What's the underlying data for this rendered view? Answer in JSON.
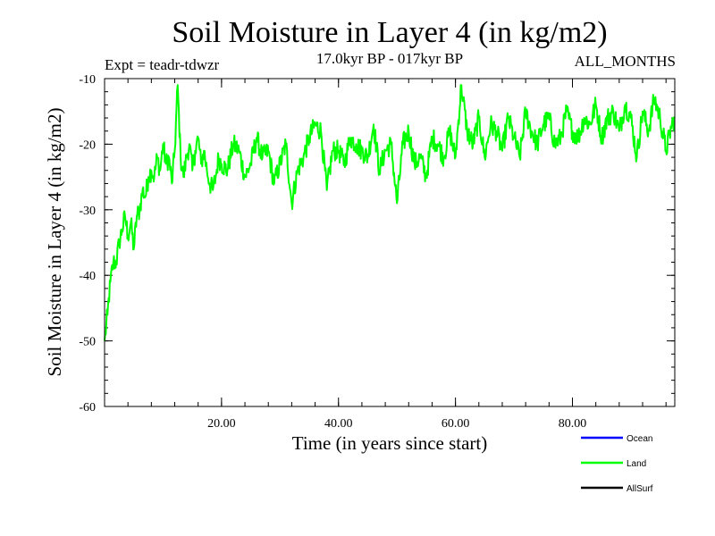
{
  "chart_data": {
    "type": "line",
    "title": "Soil Moisture in Layer 4 (in kg/m2)",
    "subtitle_left": "Expt = teadr-tdwzr",
    "subtitle_center": "17.0kyr BP - 017kyr BP",
    "subtitle_right": "ALL_MONTHS",
    "xlabel": "Time (in years since start)",
    "ylabel": "Soil Moisture in Layer 4 (in kg/m2)",
    "xlim": [
      0,
      97.5
    ],
    "ylim": [
      -60,
      -10
    ],
    "x_ticks": [
      20,
      40,
      60,
      80
    ],
    "x_tick_labels": [
      "20.00",
      "40.00",
      "60.00",
      "80.00"
    ],
    "y_ticks": [
      -60,
      -50,
      -40,
      -30,
      -20,
      -10
    ],
    "y_tick_labels": [
      "-60",
      "-50",
      "-40",
      "-30",
      "-20",
      "-10"
    ],
    "legend": [
      {
        "name": "Ocean",
        "color": "#0000ff"
      },
      {
        "name": "Land",
        "color": "#00ff00"
      },
      {
        "name": "AllSurf",
        "color": "#000000"
      }
    ],
    "series": [
      {
        "name": "Land",
        "color": "#00ff00",
        "x": [
          0,
          0.5,
          1,
          1.5,
          2,
          2.5,
          3,
          3.5,
          4,
          4.5,
          5,
          5.5,
          6,
          6.5,
          7,
          7.5,
          8,
          8.5,
          9,
          9.5,
          10,
          10.5,
          11,
          11.5,
          12,
          12.5,
          13,
          13.5,
          14,
          14.5,
          15,
          15.5,
          16,
          16.5,
          17,
          17.5,
          18,
          18.5,
          19,
          19.5,
          20,
          21,
          22,
          23,
          24,
          25,
          26,
          27,
          28,
          29,
          30,
          31,
          32,
          33,
          34,
          35,
          36,
          37,
          38,
          39,
          40,
          41,
          42,
          43,
          44,
          45,
          46,
          47,
          48,
          49,
          50,
          51,
          52,
          53,
          54,
          55,
          56,
          57,
          58,
          59,
          60,
          61,
          62,
          63,
          64,
          65,
          66,
          67,
          68,
          69,
          70,
          71,
          72,
          73,
          74,
          75,
          76,
          77,
          78,
          79,
          80,
          81,
          82,
          83,
          84,
          85,
          86,
          87,
          88,
          89,
          90,
          91,
          92,
          93,
          94,
          95,
          96,
          97,
          97.5
        ],
        "values": [
          -50,
          -46,
          -41,
          -38,
          -38,
          -35,
          -33,
          -31,
          -34,
          -32,
          -36,
          -31,
          -30,
          -27,
          -28,
          -25,
          -24,
          -25,
          -22,
          -24,
          -20,
          -23,
          -22,
          -26,
          -21,
          -11,
          -22,
          -25,
          -22,
          -20,
          -24,
          -21,
          -19,
          -23,
          -21,
          -24,
          -26,
          -27,
          -25,
          -22,
          -23,
          -24,
          -20,
          -21,
          -25,
          -23,
          -19,
          -22,
          -21,
          -26,
          -23,
          -20,
          -29,
          -24,
          -22,
          -19,
          -17,
          -18,
          -27,
          -21,
          -21,
          -23,
          -19,
          -20,
          -21,
          -22,
          -17,
          -24,
          -21,
          -20,
          -29,
          -20,
          -18,
          -23,
          -22,
          -25,
          -19,
          -20,
          -22,
          -18,
          -22,
          -11,
          -18,
          -20,
          -16,
          -22,
          -17,
          -18,
          -21,
          -16,
          -19,
          -22,
          -15,
          -18,
          -20,
          -17,
          -16,
          -20,
          -19,
          -15,
          -18,
          -19,
          -16,
          -17,
          -14,
          -19,
          -16,
          -15,
          -18,
          -14,
          -16,
          -22,
          -15,
          -18,
          -13,
          -16,
          -21,
          -17,
          -16
        ]
      }
    ]
  }
}
